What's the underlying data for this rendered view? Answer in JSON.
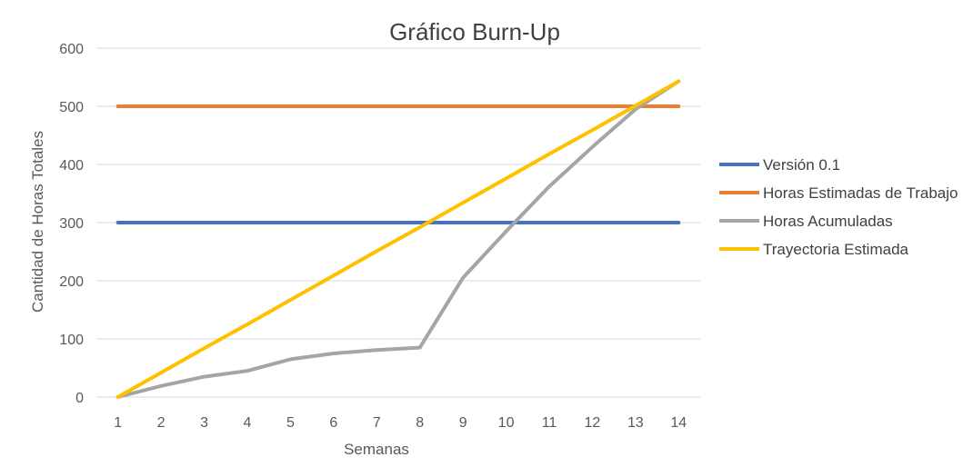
{
  "chart_data": {
    "type": "line",
    "title": "Gráfico Burn-Up",
    "xlabel": "Semanas",
    "ylabel": "Cantidad de Horas Totales",
    "x": [
      1,
      2,
      3,
      4,
      5,
      6,
      7,
      8,
      9,
      10,
      11,
      12,
      13,
      14
    ],
    "xlim": [
      0.5,
      14.5
    ],
    "ylim": [
      0,
      600
    ],
    "yticks": [
      0,
      100,
      200,
      300,
      400,
      500,
      600
    ],
    "grid": true,
    "legend_position": "right",
    "series": [
      {
        "name": "Versión 0.1",
        "color": "#4472C4",
        "values": [
          300,
          300,
          300,
          300,
          300,
          300,
          300,
          300,
          300,
          300,
          300,
          300,
          300,
          300
        ]
      },
      {
        "name": "Horas Estimadas de Trabajo",
        "color": "#ED7D31",
        "values": [
          500,
          500,
          500,
          500,
          500,
          500,
          500,
          500,
          500,
          500,
          500,
          500,
          500,
          500
        ]
      },
      {
        "name": "Horas Acumuladas",
        "color": "#A5A5A5",
        "values": [
          0,
          19,
          35,
          45,
          65,
          75,
          81,
          85,
          205,
          285,
          362,
          430,
          495,
          543
        ]
      },
      {
        "name": "Trayectoria Estimada",
        "color": "#FFC000",
        "values": [
          0,
          42,
          84,
          125,
          167,
          209,
          251,
          292,
          334,
          376,
          418,
          459,
          501,
          543
        ]
      }
    ]
  }
}
